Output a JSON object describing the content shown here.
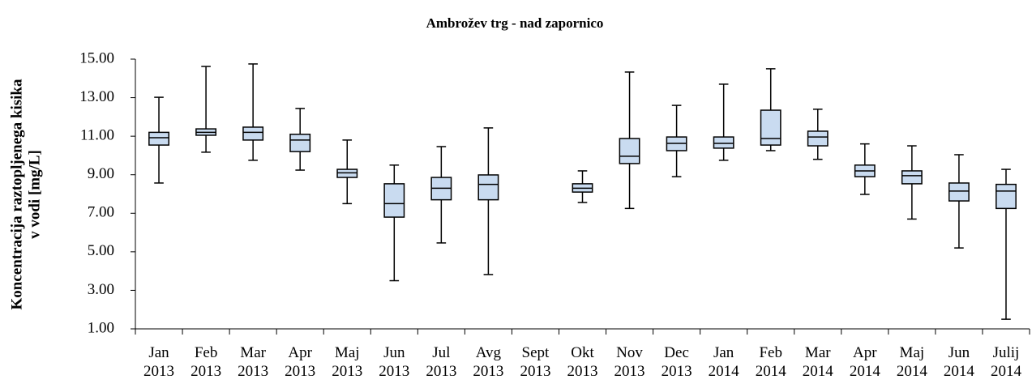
{
  "chart_data": {
    "type": "box",
    "title": "Ambrožev trg - nad zapornico",
    "y_label": [
      "Koncentracija raztopljenega kisika",
      "v vodi [mg/L]"
    ],
    "categories": [
      "Jan 2013",
      "Feb 2013",
      "Mar 2013",
      "Apr 2013",
      "Maj 2013",
      "Jun 2013",
      "Jul 2013",
      "Avg 2013",
      "Sept 2013",
      "Okt 2013",
      "Nov 2013",
      "Dec 2013",
      "Jan 2014",
      "Feb 2014",
      "Mar 2014",
      "Apr 2014",
      "Maj 2014",
      "Jun 2014",
      "Julij 2014"
    ],
    "min": [
      8.57,
      10.17,
      9.75,
      9.24,
      7.5,
      3.5,
      5.46,
      3.82,
      null,
      7.56,
      7.25,
      8.9,
      9.75,
      10.25,
      9.8,
      7.98,
      6.7,
      5.2,
      1.5
    ],
    "q1": [
      10.54,
      11.05,
      10.8,
      10.2,
      8.86,
      6.8,
      7.7,
      7.7,
      null,
      8.1,
      9.58,
      10.25,
      10.38,
      10.54,
      10.5,
      8.9,
      8.53,
      7.64,
      7.25
    ],
    "median": [
      10.92,
      11.2,
      11.2,
      10.8,
      9.1,
      7.5,
      8.3,
      8.5,
      null,
      8.3,
      9.96,
      10.63,
      10.63,
      10.88,
      10.96,
      9.2,
      8.95,
      8.15,
      8.15
    ],
    "q3": [
      11.2,
      11.38,
      11.47,
      11.1,
      9.28,
      8.53,
      8.86,
      8.99,
      null,
      8.53,
      10.88,
      10.96,
      10.96,
      12.35,
      11.26,
      9.5,
      9.2,
      8.57,
      8.5
    ],
    "max": [
      13.02,
      14.62,
      14.75,
      12.44,
      10.8,
      9.5,
      10.46,
      11.43,
      null,
      9.2,
      14.33,
      12.6,
      13.7,
      14.5,
      12.4,
      10.6,
      10.5,
      10.04,
      9.28
    ],
    "color": "#c9dbf0",
    "ylim": [
      1,
      15
    ],
    "yticks": [
      {
        "value": 1,
        "label": "1.00"
      },
      {
        "value": 3,
        "label": "3.00"
      },
      {
        "value": 5,
        "label": "5.00"
      },
      {
        "value": 7,
        "label": "7.00"
      },
      {
        "value": 9,
        "label": "9.00"
      },
      {
        "value": 11,
        "label": "11.00"
      },
      {
        "value": 13,
        "label": "13.00"
      },
      {
        "value": 15,
        "label": "15.00"
      }
    ],
    "grid": false
  }
}
